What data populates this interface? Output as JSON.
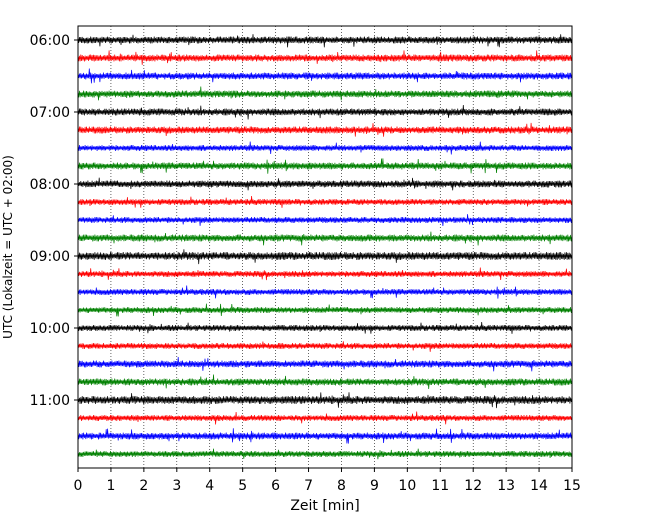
{
  "chart_data": {
    "type": "line",
    "subtype": "helicorder",
    "xlabel": "Zeit  [min]",
    "ylabel": "UTC (Lokalzeit = UTC + 02:00)",
    "xlim": [
      0,
      15
    ],
    "x_ticks": [
      "0",
      "1",
      "2",
      "3",
      "4",
      "5",
      "6",
      "7",
      "8",
      "9",
      "10",
      "11",
      "12",
      "13",
      "14",
      "15"
    ],
    "y_tick_labels": [
      "06:00",
      "07:00",
      "08:00",
      "09:00",
      "10:00",
      "11:00"
    ],
    "grid": "vertical dotted lines at each minute",
    "trace_interval_minutes": 15,
    "trace_colors": [
      "#000000",
      "#ff0000",
      "#0000ff",
      "#008000"
    ],
    "traces": [
      {
        "start": "06:00",
        "color": "#000000",
        "amplitude": 0.35
      },
      {
        "start": "06:15",
        "color": "#ff0000",
        "amplitude": 0.35
      },
      {
        "start": "06:30",
        "color": "#0000ff",
        "amplitude": 0.35
      },
      {
        "start": "06:45",
        "color": "#008000",
        "amplitude": 0.35
      },
      {
        "start": "07:00",
        "color": "#000000",
        "amplitude": 0.35
      },
      {
        "start": "07:15",
        "color": "#ff0000",
        "amplitude": 0.35
      },
      {
        "start": "07:30",
        "color": "#0000ff",
        "amplitude": 0.3
      },
      {
        "start": "07:45",
        "color": "#008000",
        "amplitude": 0.35
      },
      {
        "start": "08:00",
        "color": "#000000",
        "amplitude": 0.35
      },
      {
        "start": "08:15",
        "color": "#ff0000",
        "amplitude": 0.3
      },
      {
        "start": "08:30",
        "color": "#0000ff",
        "amplitude": 0.3
      },
      {
        "start": "08:45",
        "color": "#008000",
        "amplitude": 0.35
      },
      {
        "start": "09:00",
        "color": "#000000",
        "amplitude": 0.4
      },
      {
        "start": "09:15",
        "color": "#ff0000",
        "amplitude": 0.3
      },
      {
        "start": "09:30",
        "color": "#0000ff",
        "amplitude": 0.3
      },
      {
        "start": "09:45",
        "color": "#008000",
        "amplitude": 0.3
      },
      {
        "start": "10:00",
        "color": "#000000",
        "amplitude": 0.3
      },
      {
        "start": "10:15",
        "color": "#ff0000",
        "amplitude": 0.3
      },
      {
        "start": "10:30",
        "color": "#0000ff",
        "amplitude": 0.35
      },
      {
        "start": "10:45",
        "color": "#008000",
        "amplitude": 0.35
      },
      {
        "start": "11:00",
        "color": "#000000",
        "amplitude": 0.4
      },
      {
        "start": "11:15",
        "color": "#ff0000",
        "amplitude": 0.3
      },
      {
        "start": "11:30",
        "color": "#0000ff",
        "amplitude": 0.35
      },
      {
        "start": "11:45",
        "color": "#008000",
        "amplitude": 0.3
      }
    ]
  }
}
